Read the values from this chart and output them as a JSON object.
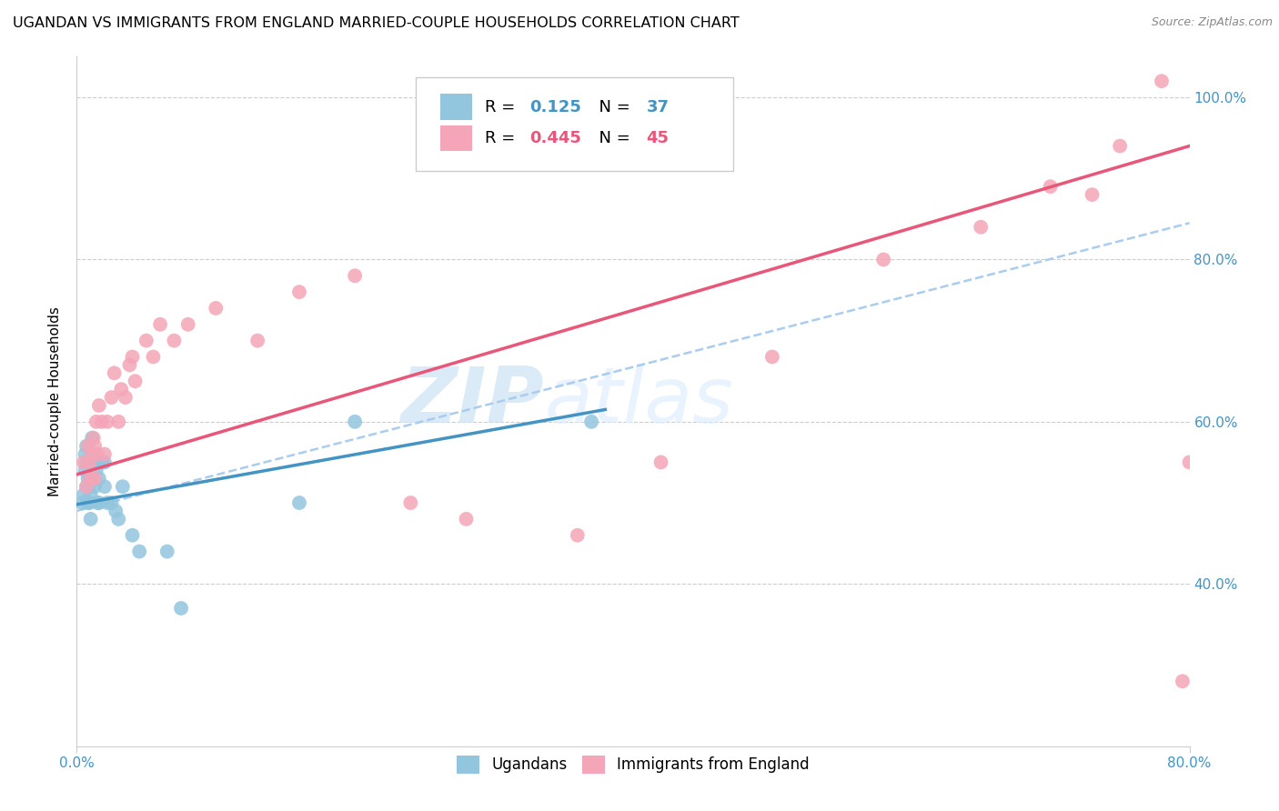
{
  "title": "UGANDAN VS IMMIGRANTS FROM ENGLAND MARRIED-COUPLE HOUSEHOLDS CORRELATION CHART",
  "source": "Source: ZipAtlas.com",
  "ylabel": "Married-couple Households",
  "xlim": [
    0.0,
    0.8
  ],
  "ylim": [
    0.2,
    1.05
  ],
  "ytick_positions": [
    0.4,
    0.6,
    0.8,
    1.0
  ],
  "ytick_labels": [
    "40.0%",
    "60.0%",
    "80.0%",
    "100.0%"
  ],
  "watermark_zip": "ZIP",
  "watermark_atlas": "atlas",
  "ugandan_R": 0.125,
  "ugandan_N": 37,
  "england_R": 0.445,
  "england_N": 45,
  "ugandan_color": "#92c5de",
  "england_color": "#f4a6b8",
  "ugandan_line_color": "#4393c3",
  "england_line_color": "#e8567a",
  "dashed_line_color": "#aaccee",
  "blue_text_color": "#4393c3",
  "pink_text_color": "#e8567a",
  "grid_color": "#cccccc",
  "ugandan_x": [
    0.004,
    0.005,
    0.006,
    0.006,
    0.007,
    0.007,
    0.007,
    0.008,
    0.008,
    0.009,
    0.009,
    0.01,
    0.01,
    0.01,
    0.011,
    0.011,
    0.012,
    0.013,
    0.014,
    0.015,
    0.016,
    0.016,
    0.018,
    0.02,
    0.02,
    0.022,
    0.025,
    0.028,
    0.03,
    0.033,
    0.04,
    0.045,
    0.065,
    0.075,
    0.16,
    0.2,
    0.37
  ],
  "ugandan_y": [
    0.5,
    0.51,
    0.54,
    0.56,
    0.52,
    0.55,
    0.57,
    0.5,
    0.53,
    0.5,
    0.52,
    0.48,
    0.51,
    0.53,
    0.56,
    0.58,
    0.55,
    0.52,
    0.54,
    0.5,
    0.5,
    0.53,
    0.55,
    0.52,
    0.55,
    0.5,
    0.5,
    0.49,
    0.48,
    0.52,
    0.46,
    0.44,
    0.44,
    0.37,
    0.5,
    0.6,
    0.6
  ],
  "england_x": [
    0.005,
    0.007,
    0.008,
    0.009,
    0.01,
    0.011,
    0.012,
    0.013,
    0.013,
    0.014,
    0.015,
    0.016,
    0.018,
    0.02,
    0.022,
    0.025,
    0.027,
    0.03,
    0.032,
    0.035,
    0.038,
    0.04,
    0.042,
    0.05,
    0.055,
    0.06,
    0.07,
    0.08,
    0.1,
    0.13,
    0.16,
    0.2,
    0.24,
    0.28,
    0.36,
    0.42,
    0.5,
    0.58,
    0.65,
    0.7,
    0.73,
    0.75,
    0.78,
    0.795,
    0.8
  ],
  "england_y": [
    0.55,
    0.52,
    0.57,
    0.55,
    0.53,
    0.56,
    0.58,
    0.53,
    0.57,
    0.6,
    0.56,
    0.62,
    0.6,
    0.56,
    0.6,
    0.63,
    0.66,
    0.6,
    0.64,
    0.63,
    0.67,
    0.68,
    0.65,
    0.7,
    0.68,
    0.72,
    0.7,
    0.72,
    0.74,
    0.7,
    0.76,
    0.78,
    0.5,
    0.48,
    0.46,
    0.55,
    0.68,
    0.8,
    0.84,
    0.89,
    0.88,
    0.94,
    1.02,
    0.28,
    0.55
  ],
  "blue_line_x0": 0.0,
  "blue_line_y0": 0.498,
  "blue_line_x1": 0.38,
  "blue_line_y1": 0.615,
  "pink_line_x0": 0.0,
  "pink_line_y0": 0.535,
  "pink_line_x1": 0.8,
  "pink_line_y1": 0.94,
  "dash_line_x0": 0.0,
  "dash_line_y0": 0.49,
  "dash_line_x1": 0.8,
  "dash_line_y1": 0.845
}
